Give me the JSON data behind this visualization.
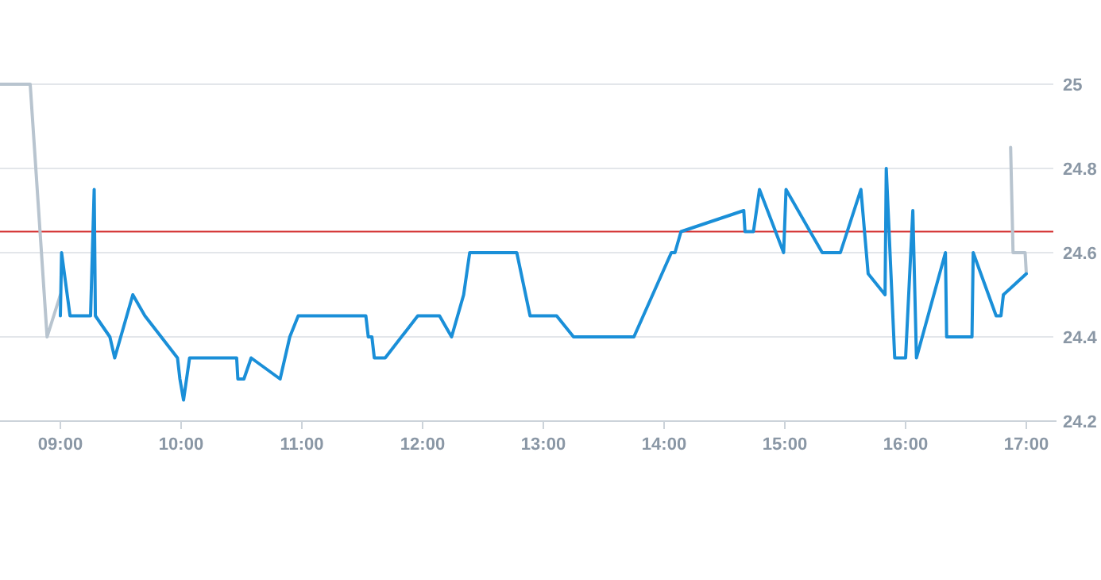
{
  "chart_data": {
    "type": "line",
    "xlim": [
      8.5,
      17.25
    ],
    "ylim": [
      24.2,
      25
    ],
    "xticks": [
      {
        "value": 9,
        "label": "09:00"
      },
      {
        "value": 10,
        "label": "10:00"
      },
      {
        "value": 11,
        "label": "11:00"
      },
      {
        "value": 12,
        "label": "12:00"
      },
      {
        "value": 13,
        "label": "13:00"
      },
      {
        "value": 14,
        "label": "14:00"
      },
      {
        "value": 15,
        "label": "15:00"
      },
      {
        "value": 16,
        "label": "16:00"
      },
      {
        "value": 17,
        "label": "17:00"
      }
    ],
    "yticks": [
      24.2,
      24.4,
      24.6,
      24.8,
      25
    ],
    "grid": "y",
    "marker": "none",
    "line_style": "solid",
    "ref_lines": [
      {
        "axis": "y",
        "value": 24.65,
        "color": "#d32f2f"
      }
    ],
    "series": [
      {
        "color": "#b8c4cf",
        "x": [
          8.5,
          8.75,
          8.89,
          9.0
        ],
        "values": [
          25,
          25,
          24.4,
          24.5
        ]
      },
      {
        "color": "#b8c4cf",
        "x": [
          16.87,
          16.89,
          16.99,
          17.0
        ],
        "values": [
          24.85,
          24.6,
          24.6,
          24.55
        ]
      },
      {
        "color": "#1a8fd8",
        "x": [
          9.0,
          9.01,
          9.08,
          9.25,
          9.28,
          9.29,
          9.41,
          9.45,
          9.6,
          9.7,
          9.97,
          9.99,
          10.02,
          10.07,
          10.46,
          10.47,
          10.52,
          10.58,
          10.82,
          10.9,
          10.97,
          11.53,
          11.55,
          11.58,
          11.6,
          11.69,
          11.96,
          12.14,
          12.24,
          12.34,
          12.39,
          12.78,
          12.89,
          13.11,
          13.25,
          13.75,
          14.06,
          14.09,
          14.14,
          14.66,
          14.67,
          14.74,
          14.79,
          14.99,
          15.01,
          15.31,
          15.46,
          15.63,
          15.69,
          15.83,
          15.84,
          15.91,
          16.0,
          16.06,
          16.09,
          16.33,
          16.34,
          16.55,
          16.56,
          16.75,
          16.79,
          16.81,
          17.0
        ],
        "values": [
          24.45,
          24.6,
          24.45,
          24.45,
          24.75,
          24.45,
          24.4,
          24.35,
          24.5,
          24.45,
          24.35,
          24.3,
          24.25,
          24.35,
          24.35,
          24.3,
          24.3,
          24.35,
          24.3,
          24.4,
          24.45,
          24.45,
          24.4,
          24.4,
          24.35,
          24.35,
          24.45,
          24.45,
          24.4,
          24.5,
          24.6,
          24.6,
          24.45,
          24.45,
          24.4,
          24.4,
          24.6,
          24.6,
          24.65,
          24.7,
          24.65,
          24.65,
          24.75,
          24.6,
          24.75,
          24.6,
          24.6,
          24.75,
          24.55,
          24.5,
          24.8,
          24.35,
          24.35,
          24.7,
          24.35,
          24.6,
          24.4,
          24.4,
          24.6,
          24.45,
          24.45,
          24.5,
          24.55
        ]
      }
    ]
  }
}
